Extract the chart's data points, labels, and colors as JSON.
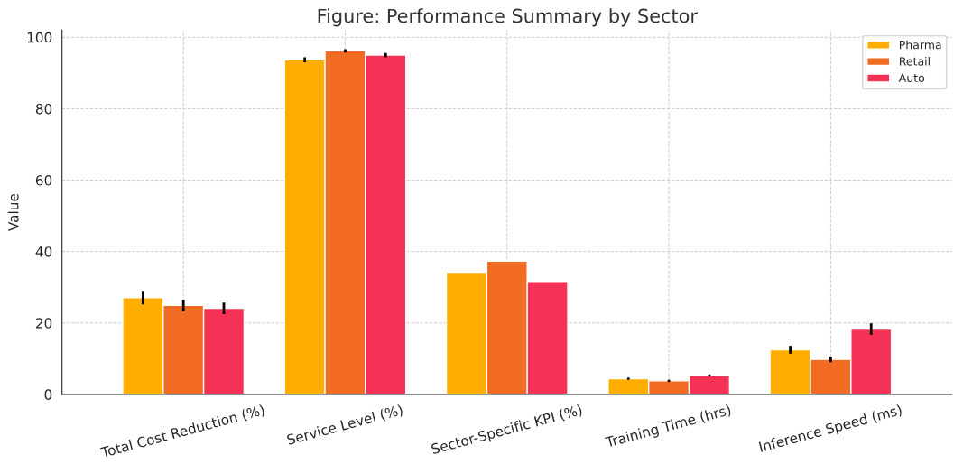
{
  "chart_data": {
    "type": "bar",
    "title": "Figure: Performance Summary by Sector",
    "ylabel": "Value",
    "categories": [
      "Total Cost Reduction (%)",
      "Service Level (%)",
      "Sector-Specific KPI (%)",
      "Training Time (hrs)",
      "Inference Speed (ms)"
    ],
    "series": [
      {
        "name": "Pharma",
        "color": "#ffae00",
        "values": [
          27.1,
          93.7,
          34.2,
          4.4,
          12.5
        ],
        "errors": [
          1.9,
          0.7,
          null,
          0.3,
          1.1
        ]
      },
      {
        "name": "Retail",
        "color": "#f26b22",
        "values": [
          24.9,
          96.2,
          37.3,
          3.8,
          9.8
        ],
        "errors": [
          1.6,
          0.5,
          null,
          0.3,
          0.8
        ]
      },
      {
        "name": "Auto",
        "color": "#f53255",
        "values": [
          24.1,
          95.0,
          31.6,
          5.3,
          18.3
        ],
        "errors": [
          1.6,
          0.6,
          null,
          0.3,
          1.6
        ]
      }
    ],
    "ylim": [
      0,
      102
    ],
    "yticks": [
      0,
      20,
      40,
      60,
      80,
      100
    ],
    "grid": true,
    "legend": "top right"
  }
}
